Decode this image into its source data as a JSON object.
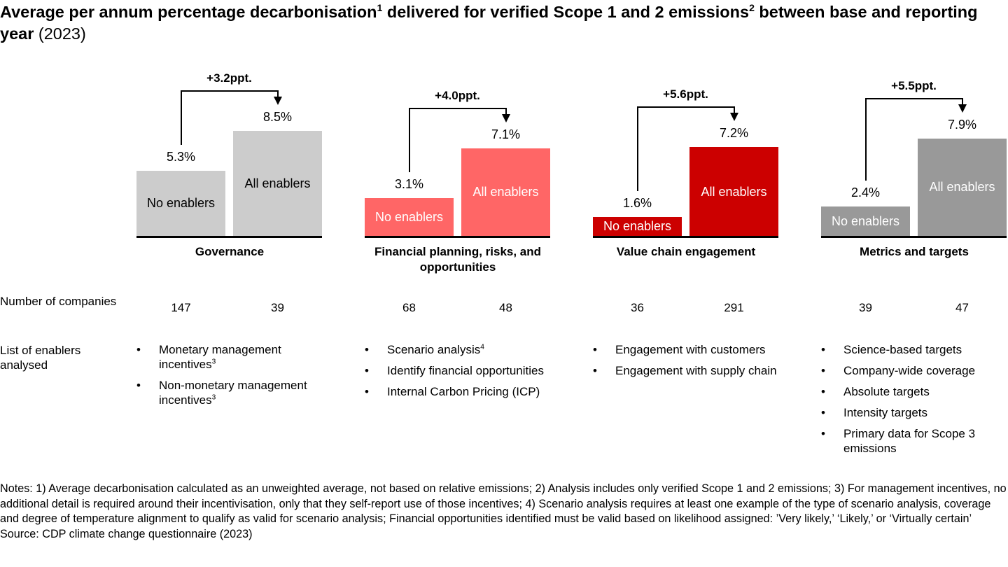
{
  "title": {
    "main": "Average per annum percentage decarbonisation",
    "sup1": "1",
    "mid": " delivered for verified Scope 1 and 2 emissions",
    "sup2": "2",
    "end": " between base and reporting year",
    "year": "(2023)"
  },
  "chart_data": {
    "type": "bar",
    "ylim": [
      0,
      8.5
    ],
    "series_labels": [
      "No enablers",
      "All enablers"
    ],
    "groups": [
      {
        "category": "Governance",
        "values": [
          5.3,
          8.5
        ],
        "labels": [
          "5.3%",
          "8.5%"
        ],
        "delta": "+3.2ppt.",
        "colors": [
          "#cccccc",
          "#cccccc"
        ],
        "text_color": "#000000",
        "companies": [
          "147",
          "39"
        ]
      },
      {
        "category": "Financial planning, risks, and opportunities",
        "values": [
          3.1,
          7.1
        ],
        "labels": [
          "3.1%",
          "7.1%"
        ],
        "delta": "+4.0ppt.",
        "colors": [
          "#ff6666",
          "#ff6666"
        ],
        "text_color": "#ffffff",
        "companies": [
          "68",
          "48"
        ]
      },
      {
        "category": "Value chain engagement",
        "values": [
          1.6,
          7.2
        ],
        "labels": [
          "1.6%",
          "7.2%"
        ],
        "delta": "+5.6ppt.",
        "colors": [
          "#cc0000",
          "#cc0000"
        ],
        "text_color": "#ffffff",
        "companies": [
          "36",
          "291"
        ]
      },
      {
        "category": "Metrics and targets",
        "values": [
          2.4,
          7.9
        ],
        "labels": [
          "2.4%",
          "7.9%"
        ],
        "delta": "+5.5ppt.",
        "colors": [
          "#999999",
          "#999999"
        ],
        "text_color": "#ffffff",
        "companies": [
          "39",
          "47"
        ]
      }
    ]
  },
  "rows": {
    "companies_label": "Number of companies",
    "enablers_label": "List of enablers analysed"
  },
  "enablers": [
    [
      {
        "t": "Monetary management incentives",
        "s": "3"
      },
      {
        "t": "Non-monetary management incentives",
        "s": "3"
      }
    ],
    [
      {
        "t": "Scenario analysis",
        "s": "4"
      },
      {
        "t": "Identify financial opportunities",
        "s": ""
      },
      {
        "t": "Internal Carbon Pricing (ICP)",
        "s": ""
      }
    ],
    [
      {
        "t": "Engagement with customers",
        "s": ""
      },
      {
        "t": "Engagement with supply chain",
        "s": ""
      }
    ],
    [
      {
        "t": "Science-based targets",
        "s": ""
      },
      {
        "t": "Company-wide coverage",
        "s": ""
      },
      {
        "t": "Absolute targets",
        "s": ""
      },
      {
        "t": "Intensity targets",
        "s": ""
      },
      {
        "t": "Primary data for Scope 3 emissions",
        "s": ""
      }
    ]
  ],
  "notes": "Notes: 1) Average decarbonisation calculated as an unweighted average, not based on relative emissions; 2) Analysis includes only verified Scope 1 and 2 emissions; 3) For management incentives, no additional detail is required around their incentivisation, only that they self-report use of those incentives; 4) Scenario analysis requires at least one example of the type of scenario analysis, coverage and degree of temperature alignment to qualify as valid for scenario analysis; Financial opportunities identified must be valid based on likelihood assigned: ’Very likely,’ ‘Likely,’ or ‘Virtually certain’",
  "source": "Source: CDP climate change questionnaire (2023)"
}
